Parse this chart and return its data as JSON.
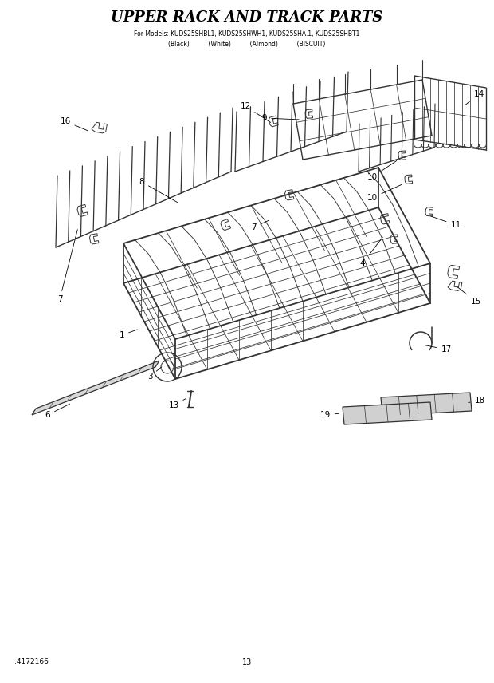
{
  "title": "UPPER RACK AND TRACK PARTS",
  "subtitle_line1": "For Models: KUDS25SHBL1, KUDS25SHWH1, KUDS25SHA.1, KUDS25SHBT1",
  "subtitle_line2": "(Black)          (White)          (Almond)          (BISCUIT)",
  "footer_left": ".4172166",
  "footer_center": "13",
  "bg_color": "#ffffff",
  "dc": "#333333"
}
